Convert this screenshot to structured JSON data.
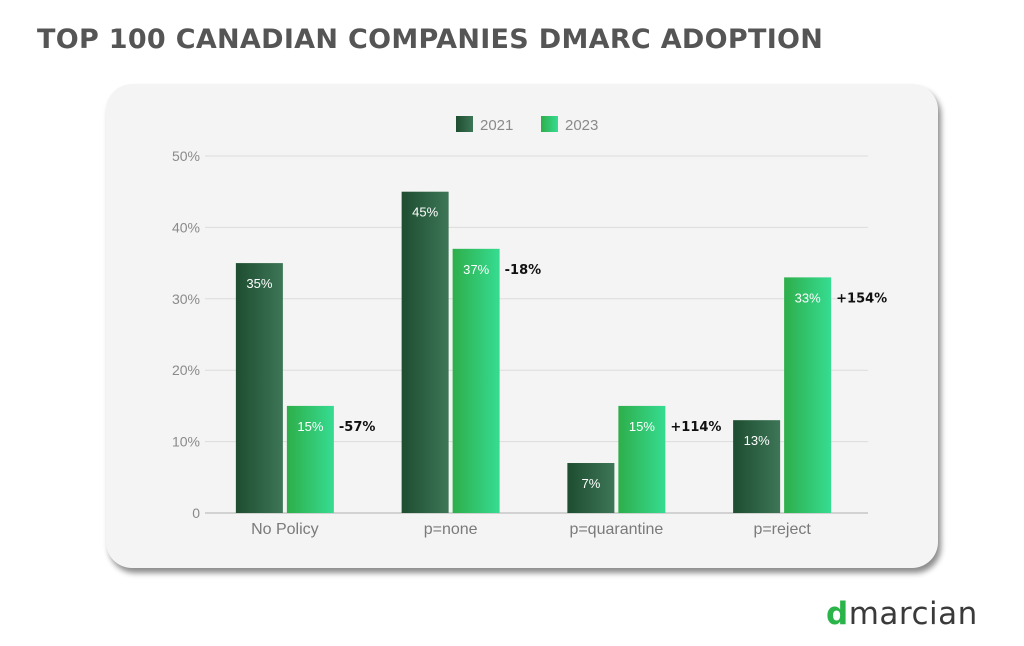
{
  "page": {
    "title": "TOP 100 CANADIAN COMPANIES DMARC ADOPTION",
    "logo": {
      "mark": "d",
      "rest": "marcian"
    }
  },
  "chart_data": {
    "type": "bar",
    "categories": [
      "No Policy",
      "p=none",
      "p=quarantine",
      "p=reject"
    ],
    "series": [
      {
        "name": "2021",
        "values": [
          35,
          45,
          7,
          13
        ],
        "colors": [
          "#1e4d30",
          "#3d7657"
        ]
      },
      {
        "name": "2023",
        "values": [
          15,
          37,
          15,
          33
        ],
        "colors": [
          "#2eae4a",
          "#36dc92"
        ]
      }
    ],
    "data_labels": {
      "2021": [
        "35%",
        "45%",
        "7%",
        "13%"
      ],
      "2023": [
        "15%",
        "37%",
        "15%",
        "33%"
      ]
    },
    "change_labels": [
      "-57%",
      "-18%",
      "+114%",
      "+154%"
    ],
    "ytick_labels": [
      "0",
      "10%",
      "20%",
      "30%",
      "40%",
      "50%"
    ],
    "ytick_values": [
      0,
      10,
      20,
      30,
      40,
      50
    ],
    "ylim": [
      0,
      50
    ],
    "grid": true,
    "legend_position": "top-center"
  }
}
